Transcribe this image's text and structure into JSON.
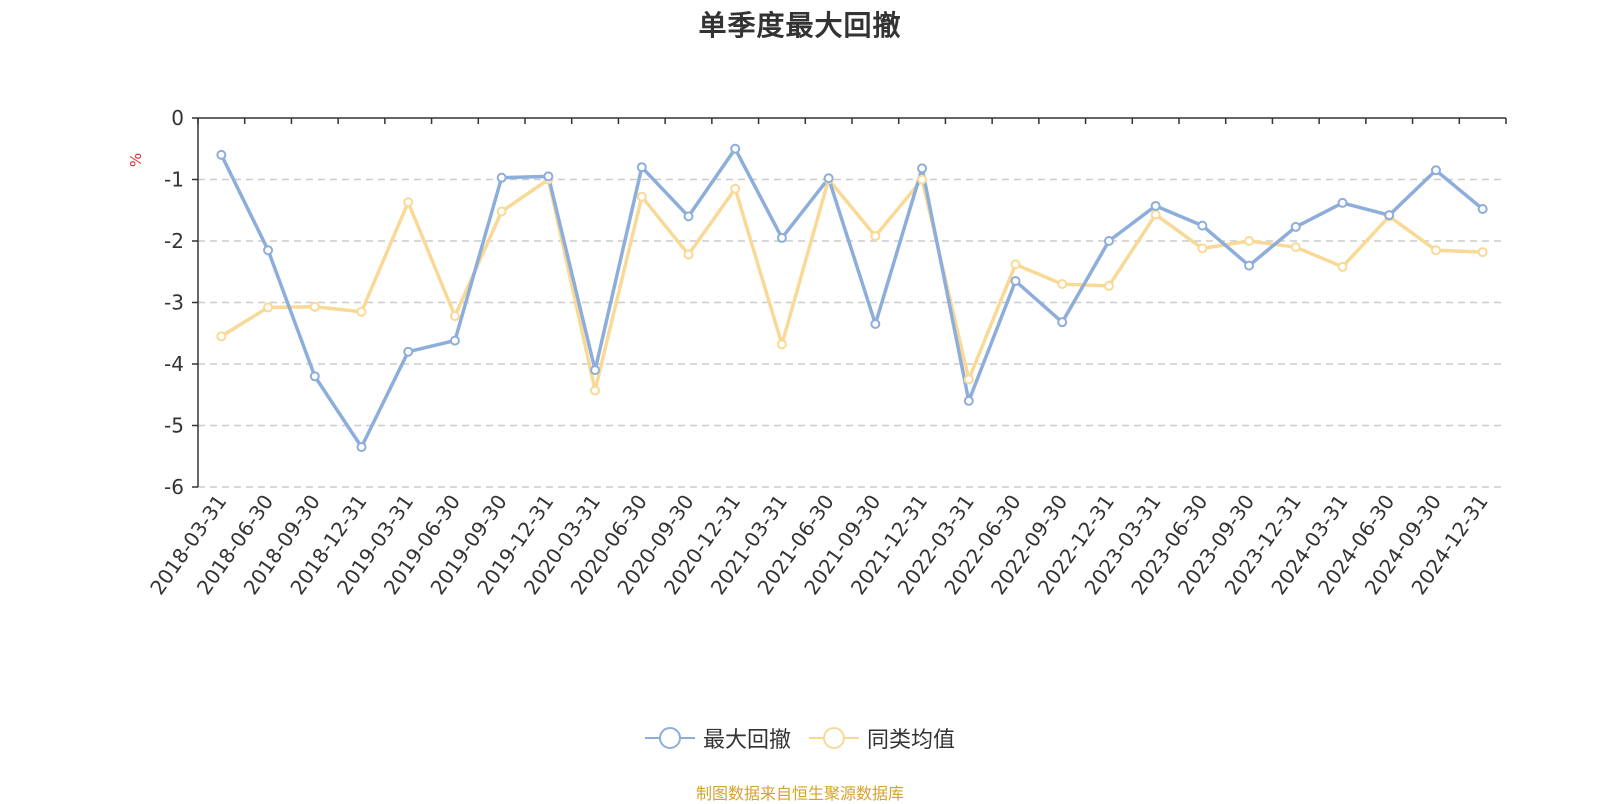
{
  "chart_data": {
    "type": "line",
    "title": "单季度最大回撤",
    "ylabel": "%",
    "ylim": [
      -6,
      0
    ],
    "yticks": [
      0,
      -1,
      -2,
      -3,
      -4,
      -5,
      -6
    ],
    "grid": true,
    "legend_position": "bottom-center",
    "categories": [
      "2018-03-31",
      "2018-06-30",
      "2018-09-30",
      "2018-12-31",
      "2019-03-31",
      "2019-06-30",
      "2019-09-30",
      "2019-12-31",
      "2020-03-31",
      "2020-06-30",
      "2020-09-30",
      "2020-12-31",
      "2021-03-31",
      "2021-06-30",
      "2021-09-30",
      "2021-12-31",
      "2022-03-31",
      "2022-06-30",
      "2022-09-30",
      "2022-12-31",
      "2023-03-31",
      "2023-06-30",
      "2023-09-30",
      "2023-12-31",
      "2024-03-31",
      "2024-06-30",
      "2024-09-30",
      "2024-12-31"
    ],
    "series": [
      {
        "name": "最大回撤",
        "color": "#8daddb",
        "values": [
          -0.6,
          -2.15,
          -4.2,
          -5.35,
          -3.8,
          -3.62,
          -0.97,
          -0.95,
          -4.1,
          -0.8,
          -1.6,
          -0.5,
          -1.95,
          -0.98,
          -3.35,
          -0.82,
          -4.6,
          -2.65,
          -3.32,
          -2.0,
          -1.43,
          -1.75,
          -2.4,
          -1.77,
          -1.38,
          -1.58,
          -0.85,
          -1.48
        ]
      },
      {
        "name": "同类均值",
        "color": "#f9d996",
        "values": [
          -3.55,
          -3.08,
          -3.07,
          -3.15,
          -1.37,
          -3.22,
          -1.52,
          -1.0,
          -4.43,
          -1.28,
          -2.22,
          -1.15,
          -3.68,
          -1.0,
          -1.92,
          -1.0,
          -4.25,
          -2.38,
          -2.7,
          -2.73,
          -1.57,
          -2.12,
          -2.0,
          -2.1,
          -2.42,
          -1.6,
          -2.15,
          -2.18
        ]
      }
    ]
  },
  "footer": {
    "source": "制图数据来自恒生聚源数据库"
  }
}
